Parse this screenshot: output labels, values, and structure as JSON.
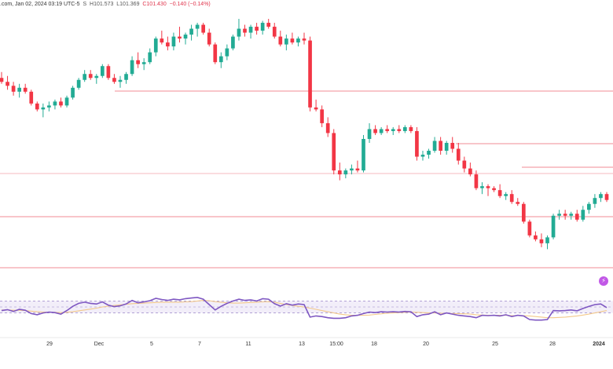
{
  "header": {
    "source": ".com, Jan 02, 2024 03:19 UTC-5",
    "flag": "S",
    "high": "H101.573",
    "low": "L101.369",
    "close": "C101.430",
    "change": "−0.140 (−0.14%)"
  },
  "icons": {
    "event_marker": "lightning-icon"
  },
  "chart_data": [
    {
      "type": "candlestick",
      "title": "",
      "xlabel": "",
      "ylabel": "",
      "x_tick_labels": [
        "29",
        "Dec",
        "5",
        "7",
        "11",
        "13",
        "15:00",
        "18",
        "20",
        "25",
        "28",
        "2024"
      ],
      "horizontal_levels": [
        {
          "label": "",
          "color": "#f28b96"
        },
        {
          "label": "",
          "color": "#f28b96"
        },
        {
          "label": "",
          "color": "#f28b96"
        },
        {
          "label": "",
          "color": "#f28b96"
        },
        {
          "label": "",
          "color": "#f28b96"
        }
      ],
      "colors": {
        "up": "#22ab94",
        "down": "#f23645"
      },
      "ohlc": [
        [
          104.2,
          104.5,
          103.9,
          104.0
        ],
        [
          104.0,
          104.3,
          103.6,
          103.8
        ],
        [
          103.8,
          104.0,
          103.3,
          103.5
        ],
        [
          103.5,
          103.9,
          103.2,
          103.7
        ],
        [
          103.7,
          103.9,
          103.4,
          103.5
        ],
        [
          103.5,
          103.6,
          102.8,
          102.9
        ],
        [
          102.9,
          103.0,
          102.5,
          102.6
        ],
        [
          102.6,
          102.9,
          102.2,
          102.7
        ],
        [
          102.7,
          103.0,
          102.5,
          102.8
        ],
        [
          102.8,
          103.1,
          102.6,
          103.0
        ],
        [
          103.0,
          103.2,
          102.7,
          102.8
        ],
        [
          102.8,
          103.3,
          102.7,
          103.2
        ],
        [
          103.2,
          103.8,
          103.1,
          103.7
        ],
        [
          103.7,
          104.2,
          103.6,
          104.1
        ],
        [
          104.1,
          104.6,
          104.0,
          104.4
        ],
        [
          104.4,
          104.6,
          104.1,
          104.2
        ],
        [
          104.2,
          104.4,
          103.9,
          104.3
        ],
        [
          104.3,
          104.9,
          104.2,
          104.8
        ],
        [
          104.8,
          104.9,
          104.1,
          104.2
        ],
        [
          104.2,
          104.4,
          103.9,
          104.0
        ],
        [
          104.0,
          104.3,
          103.7,
          104.1
        ],
        [
          104.1,
          104.5,
          103.9,
          104.4
        ],
        [
          104.4,
          105.3,
          104.3,
          105.1
        ],
        [
          105.1,
          105.5,
          104.7,
          104.9
        ],
        [
          104.9,
          105.2,
          104.6,
          105.0
        ],
        [
          105.0,
          105.7,
          104.9,
          105.5
        ],
        [
          105.5,
          106.3,
          105.3,
          106.2
        ],
        [
          106.2,
          106.6,
          105.9,
          106.0
        ],
        [
          106.0,
          106.3,
          105.6,
          105.8
        ],
        [
          105.8,
          106.5,
          105.6,
          106.3
        ],
        [
          106.3,
          106.8,
          106.0,
          106.2
        ],
        [
          106.2,
          106.5,
          105.9,
          106.4
        ],
        [
          106.4,
          106.9,
          106.1,
          106.7
        ],
        [
          106.7,
          107.0,
          106.3,
          106.9
        ],
        [
          106.9,
          107.0,
          106.4,
          106.5
        ],
        [
          106.5,
          106.7,
          105.8,
          105.9
        ],
        [
          105.9,
          106.0,
          104.9,
          105.0
        ],
        [
          105.0,
          105.5,
          104.7,
          105.3
        ],
        [
          105.3,
          105.9,
          105.1,
          105.7
        ],
        [
          105.7,
          106.4,
          105.6,
          106.3
        ],
        [
          106.3,
          107.2,
          106.1,
          106.7
        ],
        [
          106.7,
          106.9,
          106.3,
          106.5
        ],
        [
          106.5,
          106.9,
          106.2,
          106.8
        ],
        [
          106.8,
          107.0,
          106.4,
          106.6
        ],
        [
          106.6,
          107.1,
          106.4,
          107.0
        ],
        [
          107.0,
          107.2,
          106.7,
          106.8
        ],
        [
          106.8,
          107.0,
          106.2,
          106.3
        ],
        [
          106.3,
          106.6,
          105.8,
          105.9
        ],
        [
          105.9,
          106.4,
          105.6,
          106.2
        ],
        [
          106.2,
          106.5,
          105.9,
          106.0
        ],
        [
          106.0,
          106.3,
          105.8,
          106.2
        ],
        [
          106.2,
          106.5,
          105.9,
          106.1
        ],
        [
          106.1,
          106.3,
          102.5,
          102.7
        ],
        [
          102.7,
          103.1,
          102.5,
          102.6
        ],
        [
          102.6,
          102.8,
          101.7,
          101.9
        ],
        [
          101.9,
          102.2,
          101.2,
          101.4
        ],
        [
          101.4,
          101.6,
          99.3,
          99.5
        ],
        [
          99.5,
          99.9,
          99.0,
          99.3
        ],
        [
          99.3,
          99.6,
          99.1,
          99.5
        ],
        [
          99.5,
          99.8,
          99.3,
          99.6
        ],
        [
          99.6,
          100.0,
          99.4,
          99.5
        ],
        [
          99.5,
          101.3,
          99.4,
          101.1
        ],
        [
          101.1,
          101.9,
          100.9,
          101.6
        ],
        [
          101.6,
          101.8,
          101.3,
          101.4
        ],
        [
          101.4,
          101.7,
          101.3,
          101.6
        ],
        [
          101.6,
          101.8,
          101.4,
          101.5
        ],
        [
          101.5,
          101.7,
          101.3,
          101.6
        ],
        [
          101.6,
          101.8,
          101.4,
          101.5
        ],
        [
          101.5,
          101.8,
          101.4,
          101.7
        ],
        [
          101.7,
          101.8,
          101.4,
          101.5
        ],
        [
          101.5,
          101.7,
          100.0,
          100.2
        ],
        [
          100.2,
          100.5,
          100.0,
          100.3
        ],
        [
          100.3,
          100.6,
          100.1,
          100.5
        ],
        [
          100.5,
          101.2,
          100.4,
          101.0
        ],
        [
          101.0,
          101.2,
          100.3,
          100.5
        ],
        [
          100.5,
          101.0,
          100.3,
          100.9
        ],
        [
          100.9,
          101.2,
          100.4,
          100.6
        ],
        [
          100.6,
          100.9,
          99.8,
          100.0
        ],
        [
          100.0,
          100.2,
          99.4,
          99.6
        ],
        [
          99.6,
          99.9,
          99.2,
          99.3
        ],
        [
          99.3,
          99.5,
          98.5,
          98.6
        ],
        [
          98.6,
          98.9,
          98.3,
          98.7
        ],
        [
          98.7,
          98.8,
          98.2,
          98.6
        ],
        [
          98.6,
          98.7,
          98.4,
          98.5
        ],
        [
          98.5,
          98.8,
          98.1,
          98.2
        ],
        [
          98.2,
          98.4,
          98.0,
          98.3
        ],
        [
          98.3,
          98.5,
          97.8,
          97.9
        ],
        [
          97.9,
          98.1,
          97.7,
          97.8
        ],
        [
          97.8,
          97.9,
          96.8,
          96.9
        ],
        [
          96.9,
          97.0,
          96.1,
          96.2
        ],
        [
          96.2,
          96.4,
          95.9,
          96.0
        ],
        [
          96.0,
          96.3,
          95.6,
          95.8
        ],
        [
          95.8,
          96.2,
          95.5,
          96.1
        ],
        [
          96.1,
          97.3,
          96.0,
          97.2
        ],
        [
          97.2,
          97.5,
          97.0,
          97.3
        ],
        [
          97.3,
          97.5,
          97.0,
          97.2
        ],
        [
          97.2,
          97.4,
          97.0,
          97.3
        ],
        [
          97.3,
          97.5,
          96.9,
          97.0
        ],
        [
          97.0,
          97.7,
          96.9,
          97.5
        ],
        [
          97.5,
          97.9,
          97.3,
          97.8
        ],
        [
          97.8,
          98.3,
          97.6,
          98.1
        ],
        [
          98.1,
          98.4,
          97.9,
          98.3
        ],
        [
          98.3,
          98.4,
          97.9,
          98.0
        ]
      ]
    },
    {
      "type": "line",
      "title": "",
      "xlabel": "",
      "ylabel": "",
      "ylim": [
        0,
        100
      ],
      "band": [
        30,
        70
      ],
      "midline": 50,
      "series": [
        {
          "color": "#7e57c2",
          "values": [
            38,
            41,
            35,
            42,
            39,
            28,
            24,
            30,
            33,
            31,
            26,
            38,
            52,
            62,
            66,
            62,
            60,
            67,
            56,
            51,
            54,
            60,
            72,
            64,
            67,
            71,
            79,
            75,
            72,
            76,
            74,
            78,
            80,
            82,
            76,
            58,
            40,
            52,
            62,
            70,
            76,
            72,
            74,
            70,
            78,
            76,
            61,
            53,
            61,
            56,
            60,
            58,
            16,
            20,
            18,
            14,
            12,
            12,
            14,
            20,
            22,
            28,
            33,
            31,
            34,
            33,
            34,
            33,
            35,
            34,
            18,
            24,
            26,
            34,
            24,
            30,
            26,
            22,
            20,
            18,
            14,
            22,
            21,
            22,
            20,
            24,
            18,
            22,
            20,
            8,
            6,
            6,
            8,
            38,
            37,
            38,
            40,
            37,
            45,
            52,
            58,
            60,
            48
          ]
        },
        {
          "color": "#f3c98b",
          "values": [
            40,
            40,
            39,
            39,
            38,
            36,
            34,
            33,
            32,
            32,
            31,
            32,
            34,
            37,
            40,
            43,
            46,
            50,
            53,
            55,
            57,
            59,
            61,
            62,
            63,
            64,
            65,
            66,
            66,
            66,
            66,
            67,
            68,
            70,
            72,
            71,
            68,
            66,
            64,
            63,
            63,
            64,
            65,
            66,
            67,
            68,
            66,
            62,
            58,
            55,
            52,
            50,
            46,
            42,
            38,
            34,
            30,
            26,
            24,
            22,
            22,
            22,
            23,
            25,
            27,
            29,
            30,
            31,
            32,
            33,
            32,
            31,
            30,
            30,
            29,
            29,
            28,
            28,
            27,
            26,
            24,
            23,
            22,
            22,
            22,
            22,
            21,
            21,
            21,
            20,
            18,
            16,
            14,
            14,
            15,
            16,
            18,
            20,
            23,
            26,
            30,
            34,
            38
          ]
        }
      ]
    }
  ]
}
